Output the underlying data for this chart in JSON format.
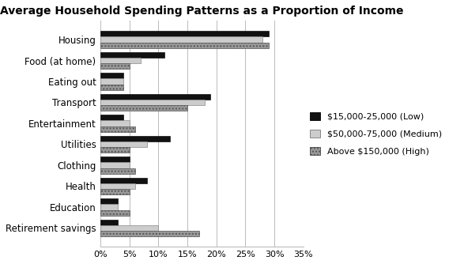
{
  "title": "Average Household Spending Patterns as a Proportion of Income",
  "categories": [
    "Housing",
    "Food (at home)",
    "Eating out",
    "Transport",
    "Entertainment",
    "Utilities",
    "Clothing",
    "Health",
    "Education",
    "Retirement savings"
  ],
  "series_order": [
    "Low",
    "Medium",
    "High"
  ],
  "series": {
    "Low": [
      29,
      11,
      4,
      19,
      4,
      12,
      5,
      8,
      3,
      3
    ],
    "Medium": [
      28,
      7,
      4,
      18,
      5,
      8,
      5,
      6,
      3,
      10
    ],
    "High": [
      29,
      5,
      4,
      15,
      6,
      5,
      6,
      5,
      5,
      17
    ]
  },
  "legend_labels": [
    "$15,000-25,000 (Low)",
    "$50,000-75,000 (Medium)",
    "Above $150,000 (High)"
  ],
  "bar_colors": [
    "#111111",
    "#cccccc",
    "#999999"
  ],
  "bar_hatches": [
    "",
    "",
    "...."
  ],
  "bar_edgecolors": [
    "#111111",
    "#888888",
    "#555555"
  ],
  "xlim": [
    0,
    35
  ],
  "xticks": [
    0,
    5,
    10,
    15,
    20,
    25,
    30,
    35
  ],
  "xticklabels": [
    "0%",
    "5%",
    "10%",
    "15%",
    "20%",
    "25%",
    "30%",
    "35%"
  ],
  "title_fontsize": 10,
  "label_fontsize": 8.5,
  "tick_fontsize": 8,
  "legend_fontsize": 8
}
